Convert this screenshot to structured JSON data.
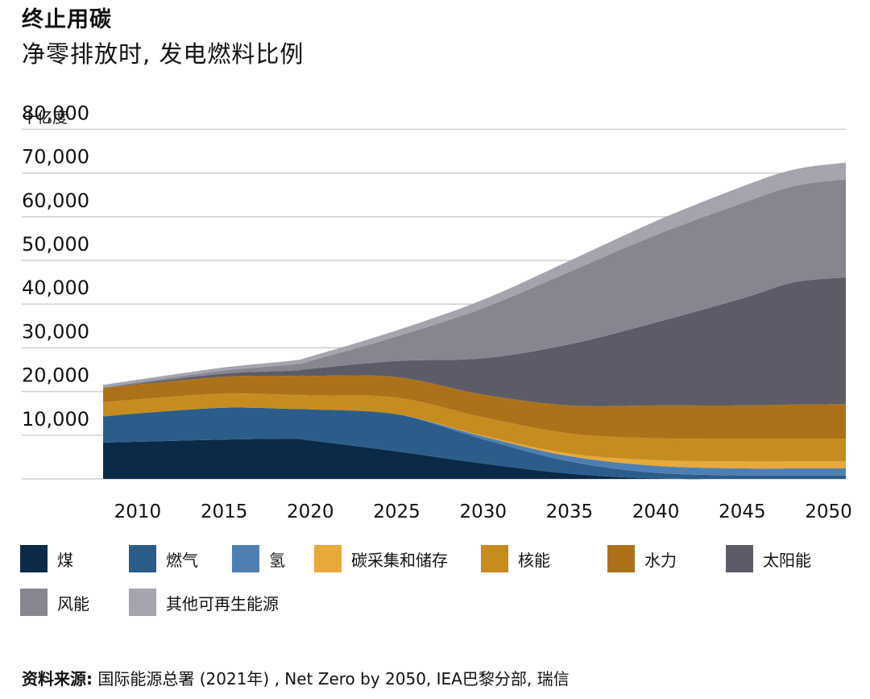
{
  "header": {
    "title": "终止用碳",
    "subtitle": "净零排放时, 发电燃料比例"
  },
  "source": {
    "label": "资料来源:",
    "text": " 国际能源总署 (2021年) , Net Zero by 2050, IEA巴黎分部, 瑞信"
  },
  "chart_data": {
    "type": "area",
    "stacked": true,
    "title": "终止用碳",
    "subtitle": "净零排放时, 发电燃料比例",
    "ylabel": "十亿度",
    "xlim": [
      2008,
      2051
    ],
    "ylim": [
      0,
      80000
    ],
    "grid": true,
    "legend_position": "bottom",
    "x_ticks": [
      2010,
      2015,
      2020,
      2025,
      2030,
      2035,
      2040,
      2045,
      2050
    ],
    "y_ticks": [
      10000,
      20000,
      30000,
      40000,
      50000,
      60000,
      70000,
      80000
    ],
    "y_tick_labels": [
      "10,000",
      "20,000",
      "30,000",
      "40,000",
      "50,000",
      "60,000",
      "70,000",
      "80,000"
    ],
    "x": [
      2008,
      2010,
      2015,
      2019,
      2020,
      2025,
      2030,
      2035,
      2040,
      2045,
      2048,
      2051
    ],
    "series": [
      {
        "name": "煤",
        "color": "#0b2a47",
        "values": [
          8300,
          8500,
          9000,
          9200,
          8800,
          6300,
          3500,
          1200,
          100,
          0,
          0,
          0
        ]
      },
      {
        "name": "燃气",
        "color": "#2c5d8a",
        "values": [
          6000,
          6500,
          7300,
          6800,
          7100,
          8500,
          5600,
          2800,
          1300,
          800,
          800,
          800
        ]
      },
      {
        "name": "氢",
        "color": "#4f7fb1",
        "values": [
          0,
          0,
          0,
          0,
          0,
          0,
          600,
          1200,
          1600,
          1600,
          1600,
          1600
        ]
      },
      {
        "name": "碳采集和储存",
        "color": "#e8a93a",
        "values": [
          0,
          0,
          0,
          0,
          0,
          0,
          200,
          600,
          1300,
          1600,
          1600,
          1600
        ]
      },
      {
        "name": "核能",
        "color": "#c68c1f",
        "values": [
          3200,
          3200,
          3200,
          3200,
          3200,
          3800,
          4200,
          4600,
          5000,
          5200,
          5200,
          5200
        ]
      },
      {
        "name": "水力",
        "color": "#ad7219",
        "values": [
          3300,
          3400,
          3900,
          4400,
          4500,
          4700,
          5200,
          6400,
          7500,
          7600,
          7800,
          7900
        ]
      },
      {
        "name": "太阳能",
        "color": "#5c5c69",
        "values": [
          0,
          200,
          700,
          1200,
          1600,
          3700,
          8300,
          14000,
          19000,
          24500,
          28000,
          29000
        ]
      },
      {
        "name": "风能",
        "color": "#868691",
        "values": [
          100,
          300,
          700,
          1400,
          1800,
          5600,
          11500,
          16600,
          20000,
          21800,
          22000,
          22500
        ]
      },
      {
        "name": "其他可再生能源",
        "color": "#a4a4ae",
        "values": [
          600,
          600,
          700,
          900,
          1000,
          1400,
          1900,
          2500,
          3200,
          3800,
          3800,
          3800
        ]
      }
    ]
  }
}
